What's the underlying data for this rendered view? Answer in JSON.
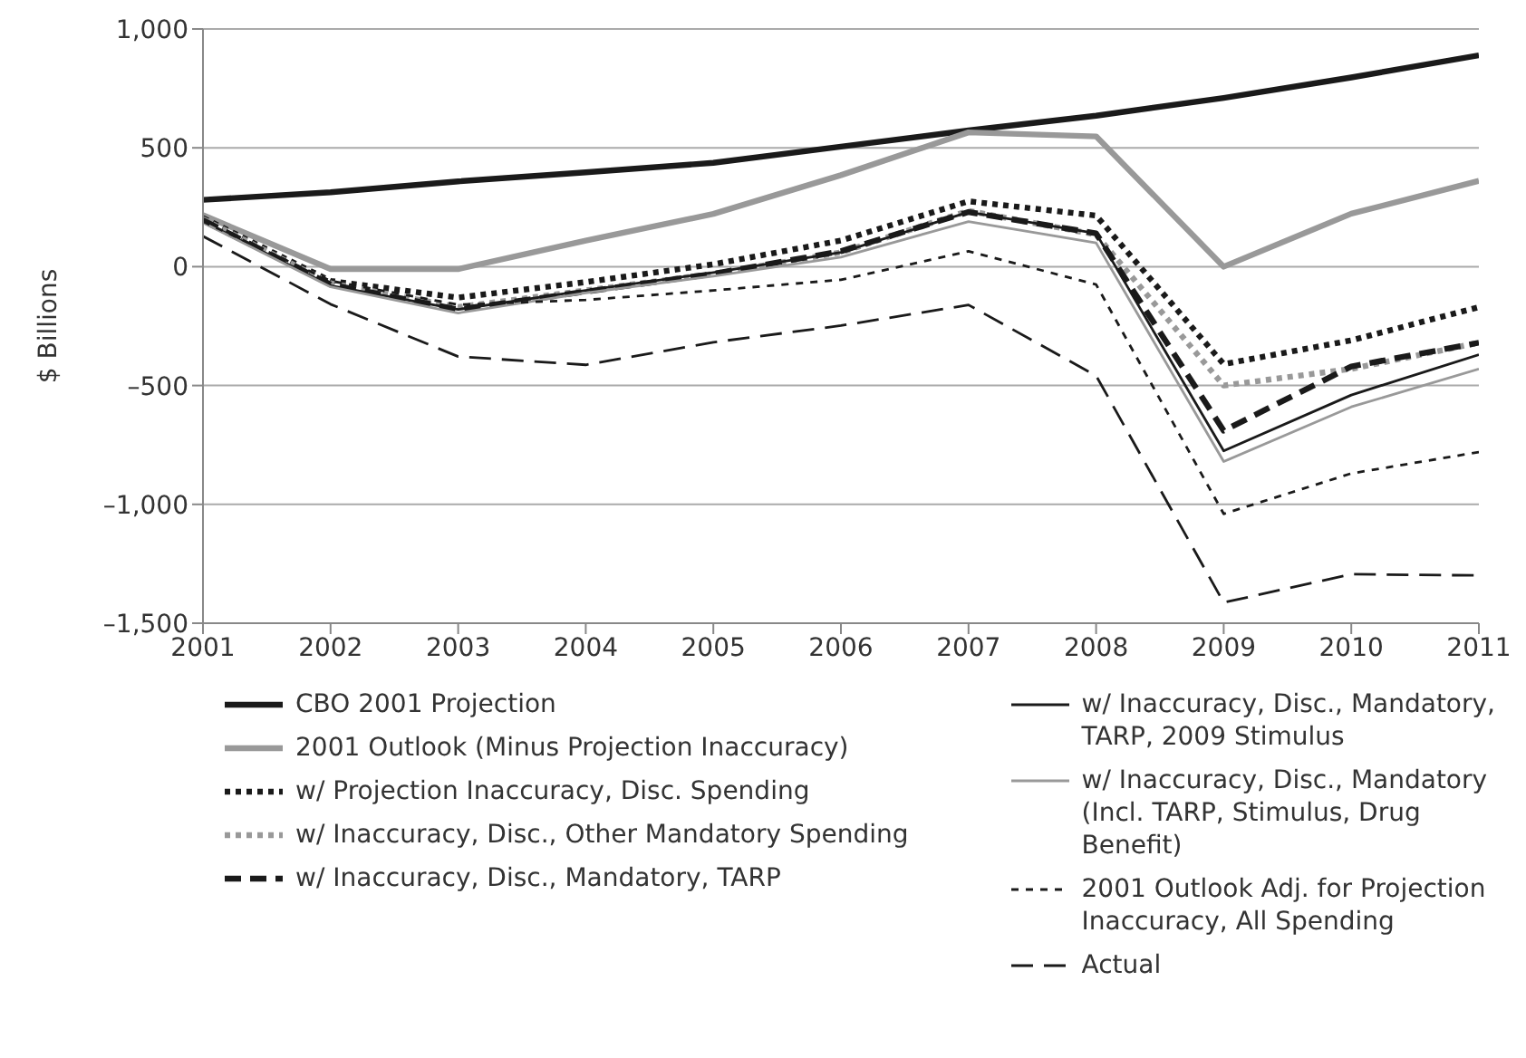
{
  "chart_data": {
    "type": "line",
    "ylabel": "$ Billions",
    "x": [
      2001,
      2002,
      2003,
      2004,
      2005,
      2006,
      2007,
      2008,
      2009,
      2010,
      2011
    ],
    "xlim": [
      2001,
      2011
    ],
    "xticks": [
      2001,
      2002,
      2003,
      2004,
      2005,
      2006,
      2007,
      2008,
      2009,
      2010,
      2011
    ],
    "ylim": [
      -1500,
      1000
    ],
    "yticks": [
      {
        "value": -1500,
        "label": "–1,500"
      },
      {
        "value": -1000,
        "label": "–1,000"
      },
      {
        "value": -500,
        "label": "–500"
      },
      0,
      500,
      {
        "value": 1000,
        "label": "1,000"
      }
    ],
    "grid": "y",
    "legend": "bottom",
    "series": [
      {
        "name": "CBO 2001 Projection",
        "color": "#1a1a1a",
        "line_style": "solid",
        "values": [
          281,
          313,
          359,
          397,
          437,
          505,
          573,
          635,
          710,
          796,
          889
        ]
      },
      {
        "name": "2001 Outlook (Minus Projection Inaccuracy)",
        "color": "#999999",
        "line_style": "solid",
        "values": [
          217,
          -10,
          -10,
          110,
          222,
          385,
          565,
          548,
          0,
          223,
          361
        ]
      },
      {
        "name": "w/ Projection Inaccuracy, Disc. Spending",
        "color": "#1a1a1a",
        "line_style": "dotted",
        "values": [
          205,
          -60,
          -130,
          -65,
          10,
          110,
          275,
          215,
          -410,
          -310,
          -170
        ]
      },
      {
        "name": "w/ Inaccuracy, Disc., Other Mandatory Spending",
        "color": "#999999",
        "line_style": "dotted",
        "values": [
          200,
          -70,
          -170,
          -100,
          -30,
          60,
          235,
          135,
          -500,
          -430,
          -320
        ]
      },
      {
        "name": "w/ Inaccuracy, Disc., Mandatory, TARP",
        "color": "#1a1a1a",
        "line_style": "dashed",
        "values": [
          195,
          -75,
          -180,
          -105,
          -30,
          65,
          230,
          140,
          -690,
          -420,
          -320
        ]
      },
      {
        "name": "w/ Inaccuracy, Disc., Mandatory, TARP, 2009 Stimulus",
        "color": "#1a1a1a",
        "line_style": "solid",
        "values": [
          190,
          -80,
          -180,
          -100,
          -25,
          60,
          230,
          140,
          -775,
          -540,
          -370
        ]
      },
      {
        "name": "w/ Inaccuracy, Disc., Mandatory (Incl. TARP, Stimulus, Drug Benefit)",
        "color": "#999999",
        "line_style": "solid",
        "values": [
          185,
          -85,
          -195,
          -110,
          -40,
          40,
          190,
          100,
          -820,
          -590,
          -430
        ]
      },
      {
        "name": "2001 Outlook Adj. for Projection Inaccuracy, All Spending",
        "color": "#1a1a1a",
        "line_style": "dashed",
        "values": [
          190,
          -60,
          -160,
          -140,
          -100,
          -55,
          65,
          -75,
          -1040,
          -870,
          -780
        ]
      },
      {
        "name": "Actual",
        "color": "#1a1a1a",
        "line_style": "dashed",
        "values": [
          128,
          -158,
          -378,
          -413,
          -318,
          -248,
          -161,
          -459,
          -1413,
          -1294,
          -1299
        ]
      }
    ]
  }
}
